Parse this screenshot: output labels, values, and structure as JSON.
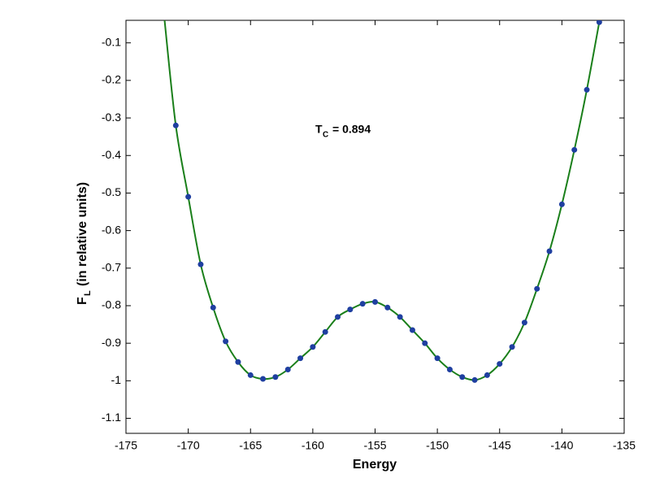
{
  "chart_data": {
    "type": "line",
    "xlabel": "Energy",
    "ylabel": {
      "main": "F",
      "sub": "L",
      "rest": "(in relative units)"
    },
    "annotation": {
      "main": "T",
      "sub": "C",
      "rest": "= 0.894"
    },
    "xlim": [
      -175,
      -135
    ],
    "xticks": [
      -175,
      -170,
      -165,
      -160,
      -155,
      -150,
      -145,
      -140,
      -135
    ],
    "ylim": [
      -1.14,
      -0.04
    ],
    "yticks": [
      -1.1,
      -1,
      -0.9,
      -0.8,
      -0.7,
      -0.6,
      -0.5,
      -0.4,
      -0.3,
      -0.2,
      -0.1
    ],
    "series": [
      {
        "color": "#1a7f1a",
        "mode": "line",
        "x": [
          -171.9,
          -171,
          -170,
          -169,
          -168,
          -167,
          -166,
          -165,
          -164,
          -163,
          -162,
          -161,
          -160,
          -159,
          -158,
          -157,
          -156,
          -155,
          -154,
          -153,
          -152,
          -151,
          -150,
          -149,
          -148,
          -147,
          -146,
          -145,
          -144,
          -143,
          -142,
          -141,
          -140,
          -139,
          -138,
          -137,
          -136.9
        ],
        "values": [
          -0.04,
          -0.32,
          -0.51,
          -0.69,
          -0.805,
          -0.895,
          -0.95,
          -0.985,
          -0.995,
          -0.99,
          -0.97,
          -0.94,
          -0.91,
          -0.87,
          -0.83,
          -0.81,
          -0.795,
          -0.79,
          -0.805,
          -0.83,
          -0.865,
          -0.9,
          -0.94,
          -0.97,
          -0.99,
          -0.998,
          -0.985,
          -0.955,
          -0.91,
          -0.845,
          -0.755,
          -0.655,
          -0.53,
          -0.385,
          -0.225,
          -0.045,
          -0.03
        ]
      },
      {
        "color": "#1f3fa0",
        "mode": "markers",
        "x": [
          -171,
          -170,
          -169,
          -168,
          -167,
          -166,
          -165,
          -164,
          -163,
          -162,
          -161,
          -160,
          -159,
          -158,
          -157,
          -156,
          -155,
          -154,
          -153,
          -152,
          -151,
          -150,
          -149,
          -148,
          -147,
          -146,
          -145,
          -144,
          -143,
          -142,
          -141,
          -140,
          -139,
          -138,
          -137
        ],
        "values": [
          -0.32,
          -0.51,
          -0.69,
          -0.805,
          -0.895,
          -0.95,
          -0.985,
          -0.995,
          -0.99,
          -0.97,
          -0.94,
          -0.91,
          -0.87,
          -0.83,
          -0.81,
          -0.795,
          -0.79,
          -0.805,
          -0.83,
          -0.865,
          -0.9,
          -0.94,
          -0.97,
          -0.99,
          -0.998,
          -0.985,
          -0.955,
          -0.91,
          -0.845,
          -0.755,
          -0.655,
          -0.53,
          -0.385,
          -0.225,
          -0.045
        ]
      }
    ]
  }
}
